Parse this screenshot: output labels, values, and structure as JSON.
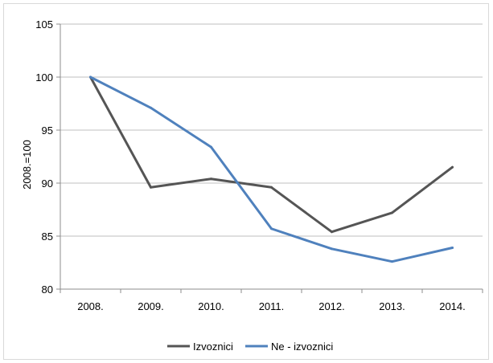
{
  "chart_data": {
    "type": "line",
    "title": "",
    "xlabel": "",
    "ylabel": "2008.=100",
    "categories": [
      "2008.",
      "2009.",
      "2010.",
      "2011.",
      "2012.",
      "2013.",
      "2014."
    ],
    "ylim": [
      80,
      105
    ],
    "yticks": [
      80,
      85,
      90,
      95,
      100,
      105
    ],
    "grid": "horizontal",
    "legend_position": "bottom",
    "series": [
      {
        "name": "Izvoznici",
        "color": "#555555",
        "values": [
          100,
          89.6,
          90.4,
          89.6,
          85.4,
          87.2,
          91.5
        ]
      },
      {
        "name": "Ne - izvoznici",
        "color": "#4f81bd",
        "values": [
          100,
          97.1,
          93.4,
          85.7,
          83.8,
          82.6,
          83.9
        ]
      }
    ]
  }
}
